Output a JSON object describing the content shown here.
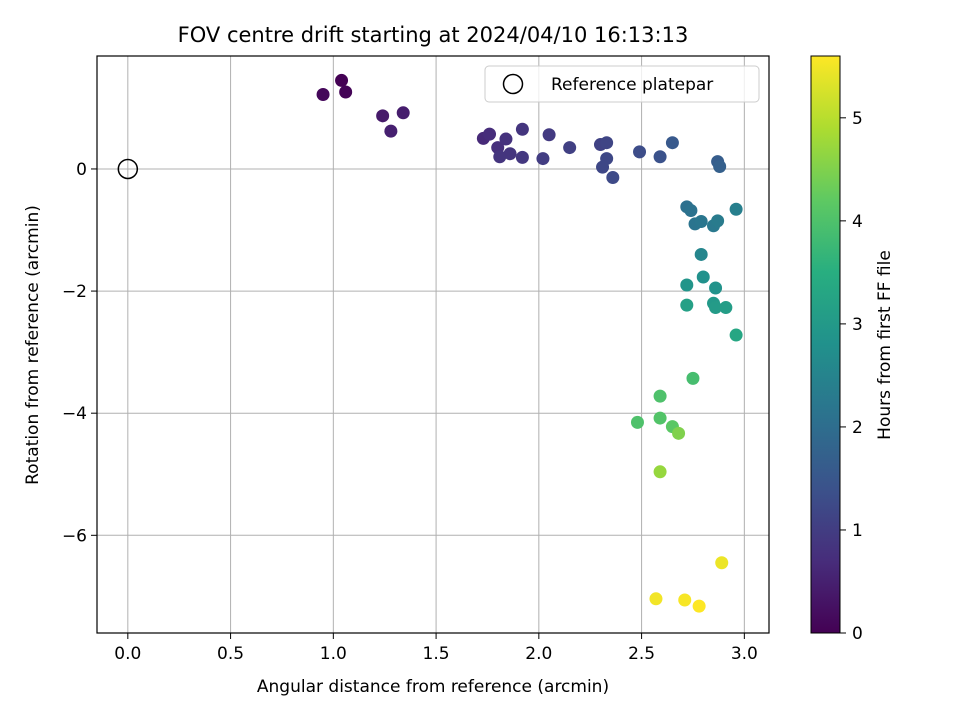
{
  "chart_data": {
    "type": "scatter",
    "title": "FOV centre drift starting at 2024/04/10 16:13:13",
    "xlabel": "Angular distance from reference (arcmin)",
    "ylabel": "Rotation from reference (arcmin)",
    "xlim": [
      -0.15,
      3.12
    ],
    "ylim": [
      -7.6,
      1.85
    ],
    "xticks": [
      0.0,
      0.5,
      1.0,
      1.5,
      2.0,
      2.5,
      3.0
    ],
    "xtick_labels": [
      "0.0",
      "0.5",
      "1.0",
      "1.5",
      "2.0",
      "2.5",
      "3.0"
    ],
    "yticks": [
      0,
      -2,
      -4,
      -6
    ],
    "ytick_labels": [
      "0",
      "−2",
      "−4",
      "−6"
    ],
    "grid": true,
    "colormap": "viridis",
    "colorbar": {
      "label": "Hours from first FF file",
      "range": [
        0,
        5.6
      ],
      "ticks": [
        0,
        1,
        2,
        3,
        4,
        5
      ],
      "tick_labels": [
        "0",
        "1",
        "2",
        "3",
        "4",
        "5"
      ]
    },
    "legend": {
      "position": "top-right",
      "entries": [
        "Reference platepar"
      ]
    },
    "reference": {
      "name": "Reference platepar",
      "x": 0.0,
      "y": 0.0,
      "marker": "open-circle"
    },
    "series": [
      {
        "points": [
          {
            "x": 1.04,
            "y": 1.45,
            "c": 0.0
          },
          {
            "x": 1.06,
            "y": 1.26,
            "c": 0.05
          },
          {
            "x": 0.95,
            "y": 1.22,
            "c": 0.1
          },
          {
            "x": 1.24,
            "y": 0.87,
            "c": 0.4
          },
          {
            "x": 1.34,
            "y": 0.92,
            "c": 0.45
          },
          {
            "x": 1.28,
            "y": 0.62,
            "c": 0.5
          },
          {
            "x": 1.73,
            "y": 0.5,
            "c": 0.65
          },
          {
            "x": 1.76,
            "y": 0.57,
            "c": 0.7
          },
          {
            "x": 1.8,
            "y": 0.35,
            "c": 0.75
          },
          {
            "x": 1.84,
            "y": 0.49,
            "c": 0.8
          },
          {
            "x": 1.86,
            "y": 0.25,
            "c": 0.85
          },
          {
            "x": 1.81,
            "y": 0.2,
            "c": 0.85
          },
          {
            "x": 1.92,
            "y": 0.65,
            "c": 0.85
          },
          {
            "x": 1.92,
            "y": 0.19,
            "c": 0.9
          },
          {
            "x": 2.02,
            "y": 0.17,
            "c": 1.0
          },
          {
            "x": 2.05,
            "y": 0.56,
            "c": 0.95
          },
          {
            "x": 2.15,
            "y": 0.35,
            "c": 1.05
          },
          {
            "x": 2.3,
            "y": 0.4,
            "c": 1.1
          },
          {
            "x": 2.33,
            "y": 0.43,
            "c": 1.15
          },
          {
            "x": 2.33,
            "y": 0.17,
            "c": 1.2
          },
          {
            "x": 2.31,
            "y": 0.03,
            "c": 1.2
          },
          {
            "x": 2.36,
            "y": -0.14,
            "c": 1.25
          },
          {
            "x": 2.49,
            "y": 0.28,
            "c": 1.3
          },
          {
            "x": 2.59,
            "y": 0.2,
            "c": 1.4
          },
          {
            "x": 2.65,
            "y": 0.43,
            "c": 1.55
          },
          {
            "x": 2.87,
            "y": 0.12,
            "c": 1.65
          },
          {
            "x": 2.88,
            "y": 0.04,
            "c": 1.7
          },
          {
            "x": 2.72,
            "y": -0.62,
            "c": 2.05
          },
          {
            "x": 2.74,
            "y": -0.68,
            "c": 2.1
          },
          {
            "x": 2.76,
            "y": -0.9,
            "c": 2.15
          },
          {
            "x": 2.79,
            "y": -0.86,
            "c": 2.2
          },
          {
            "x": 2.85,
            "y": -0.93,
            "c": 2.25
          },
          {
            "x": 2.87,
            "y": -0.85,
            "c": 2.3
          },
          {
            "x": 2.96,
            "y": -0.66,
            "c": 2.4
          },
          {
            "x": 2.79,
            "y": -1.4,
            "c": 2.55
          },
          {
            "x": 2.8,
            "y": -1.77,
            "c": 2.8
          },
          {
            "x": 2.72,
            "y": -1.9,
            "c": 2.9
          },
          {
            "x": 2.86,
            "y": -1.95,
            "c": 2.85
          },
          {
            "x": 2.85,
            "y": -2.2,
            "c": 3.0
          },
          {
            "x": 2.86,
            "y": -2.27,
            "c": 3.05
          },
          {
            "x": 2.91,
            "y": -2.27,
            "c": 3.1
          },
          {
            "x": 2.72,
            "y": -2.23,
            "c": 3.15
          },
          {
            "x": 2.96,
            "y": -2.72,
            "c": 3.3
          },
          {
            "x": 2.75,
            "y": -3.43,
            "c": 3.9
          },
          {
            "x": 2.59,
            "y": -3.72,
            "c": 4.0
          },
          {
            "x": 2.59,
            "y": -4.08,
            "c": 4.05
          },
          {
            "x": 2.48,
            "y": -4.15,
            "c": 4.0
          },
          {
            "x": 2.65,
            "y": -4.22,
            "c": 4.15
          },
          {
            "x": 2.68,
            "y": -4.33,
            "c": 4.5
          },
          {
            "x": 2.59,
            "y": -4.96,
            "c": 4.7
          },
          {
            "x": 2.89,
            "y": -6.45,
            "c": 5.45
          },
          {
            "x": 2.57,
            "y": -7.04,
            "c": 5.5
          },
          {
            "x": 2.71,
            "y": -7.06,
            "c": 5.55
          },
          {
            "x": 2.78,
            "y": -7.16,
            "c": 5.6
          }
        ]
      }
    ]
  }
}
